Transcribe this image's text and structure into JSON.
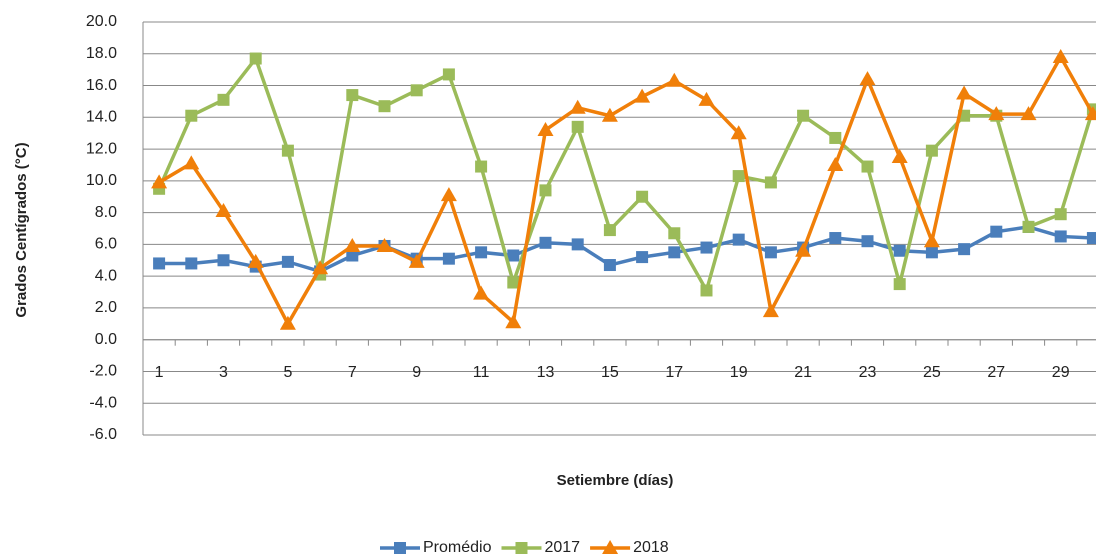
{
  "chart_data": {
    "type": "line",
    "x_label": "Setiembre (días)",
    "y_label": "Grados Centígrados  (°C)",
    "categories": [
      "1",
      null,
      "3",
      null,
      "5",
      null,
      "7",
      null,
      "9",
      null,
      "11",
      null,
      "13",
      null,
      "15",
      null,
      "17",
      null,
      "19",
      null,
      "21",
      null,
      "23",
      null,
      "25",
      null,
      "27",
      null,
      "29",
      null
    ],
    "series": [
      {
        "name": "Promédio",
        "color": "#4a7ebb",
        "marker": "square",
        "values": [
          4.8,
          4.8,
          5.0,
          4.6,
          4.9,
          4.3,
          5.3,
          5.9,
          5.1,
          5.1,
          5.5,
          5.3,
          6.1,
          6.0,
          4.7,
          5.2,
          5.5,
          5.8,
          6.3,
          5.5,
          5.8,
          6.4,
          6.2,
          5.6,
          5.5,
          5.7,
          6.8,
          7.1,
          6.5,
          6.4
        ]
      },
      {
        "name": "2017",
        "color": "#9bbb59",
        "marker": "square",
        "values": [
          9.5,
          14.1,
          15.1,
          17.7,
          11.9,
          4.1,
          15.4,
          14.7,
          15.7,
          16.7,
          10.9,
          3.6,
          9.4,
          13.4,
          6.9,
          9.0,
          6.7,
          3.1,
          10.3,
          9.9,
          14.1,
          12.7,
          10.9,
          3.5,
          11.9,
          14.1,
          14.1,
          7.1,
          7.9,
          14.5
        ]
      },
      {
        "name": "2018",
        "color": "#f07f09",
        "marker": "triangle",
        "values": [
          9.9,
          11.1,
          8.1,
          4.9,
          1.0,
          4.5,
          5.9,
          5.9,
          4.9,
          9.1,
          2.9,
          1.1,
          13.2,
          14.6,
          14.1,
          15.3,
          16.3,
          15.1,
          13.0,
          1.8,
          5.6,
          11.0,
          16.4,
          11.5,
          6.2,
          15.5,
          14.2,
          14.2,
          17.8,
          14.2
        ]
      }
    ],
    "ylim": [
      -6,
      20
    ],
    "yticks": [
      {
        "value": -6,
        "label": "-6.0"
      },
      {
        "value": -4,
        "label": "-4.0"
      },
      {
        "value": -2,
        "label": "-2.0"
      },
      {
        "value": 0,
        "label": "0.0"
      },
      {
        "value": 2,
        "label": "2.0"
      },
      {
        "value": 4,
        "label": "4.0"
      },
      {
        "value": 6,
        "label": "6.0"
      },
      {
        "value": 8,
        "label": "8.0"
      },
      {
        "value": 10,
        "label": "10.0"
      },
      {
        "value": 12,
        "label": "12.0"
      },
      {
        "value": 14,
        "label": "14.0"
      },
      {
        "value": 16,
        "label": "16.0"
      },
      {
        "value": 18,
        "label": "18.0"
      },
      {
        "value": 20,
        "label": "20.0"
      }
    ],
    "grid": true,
    "legend": "bottom"
  }
}
